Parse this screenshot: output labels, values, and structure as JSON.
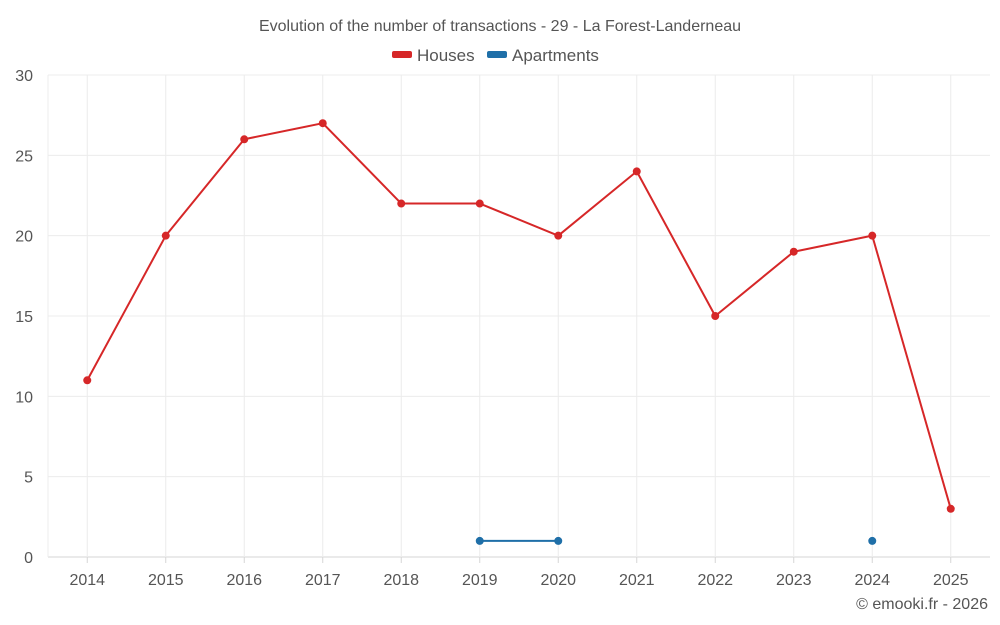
{
  "chart_data": {
    "type": "line",
    "title": "Evolution of the number of transactions - 29 - La Forest-Landerneau",
    "xlabel": "",
    "ylabel": "",
    "categories": [
      "2014",
      "2015",
      "2016",
      "2017",
      "2018",
      "2019",
      "2020",
      "2021",
      "2022",
      "2023",
      "2024",
      "2025"
    ],
    "ylim": [
      0,
      30
    ],
    "yticks": [
      "0",
      "5",
      "10",
      "15",
      "20",
      "25",
      "30"
    ],
    "grid": true,
    "legend": "top-center",
    "series": [
      {
        "name": "Houses",
        "color": "#d62728",
        "values": [
          11,
          20,
          26,
          27,
          22,
          22,
          20,
          24,
          15,
          19,
          20,
          3
        ]
      },
      {
        "name": "Apartments",
        "color": "#1f6fa8",
        "values": [
          null,
          null,
          null,
          null,
          null,
          1,
          1,
          null,
          null,
          null,
          1,
          null
        ]
      }
    ]
  },
  "credit": "© emooki.fr - 2026"
}
